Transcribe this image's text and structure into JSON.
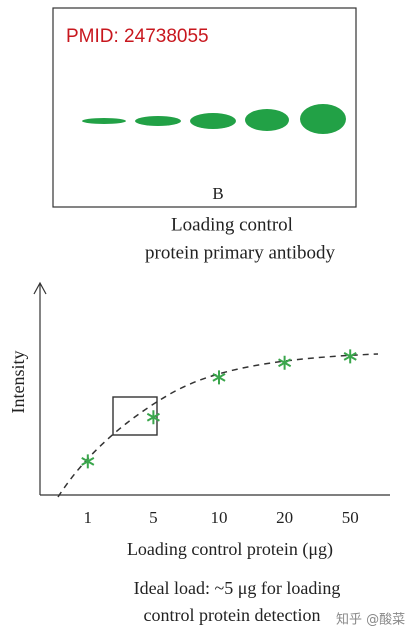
{
  "panel": {
    "pmid": "PMID: 24738055",
    "lane_label": "B",
    "caption_line1": "Loading control",
    "caption_line2": "protein primary antibody"
  },
  "chart_data": {
    "type": "scatter",
    "y_label": "Intensity",
    "x_label": "Loading control protein (μg)",
    "categories": [
      "1",
      "5",
      "10",
      "20",
      "50"
    ],
    "values": [
      16,
      37,
      56,
      63,
      66
    ],
    "color": "#3aa64c",
    "ylim": [
      0,
      100
    ],
    "caption_line1": "Ideal load: ~5 μg for loading",
    "caption_line2": "control protein detection"
  },
  "watermark": "知乎 @酸菜"
}
